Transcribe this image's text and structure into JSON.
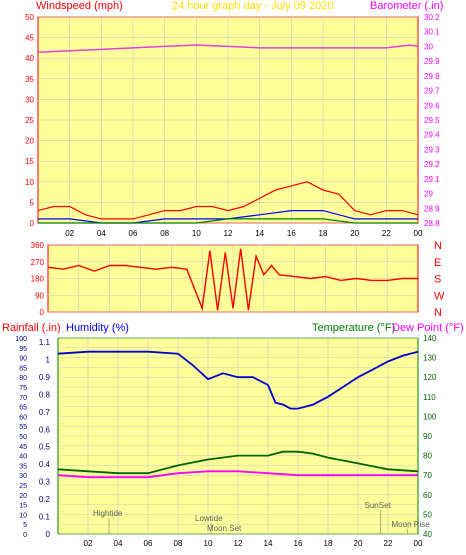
{
  "chart_data": [
    {
      "type": "line",
      "title": "24 hour graph day - July 09 2020",
      "x_ticks": [
        "02",
        "04",
        "06",
        "08",
        "10",
        "12",
        "14",
        "16",
        "18",
        "20",
        "22",
        "00"
      ],
      "left_axis": {
        "label": "Windspeed (mph)",
        "range": [
          0,
          50
        ],
        "ticks": [
          "0",
          "5",
          "10",
          "15",
          "20",
          "25",
          "30",
          "35",
          "40",
          "45",
          "50"
        ]
      },
      "right_axis": {
        "label": "Barometer (.in)",
        "range": [
          28.8,
          30.2
        ],
        "ticks": [
          "28.8",
          "28.9",
          "29",
          "29.1",
          "29.2",
          "29.3",
          "29.4",
          "29.5",
          "29.6",
          "29.7",
          "29.8",
          "29.9",
          "30",
          "30.1",
          "30.2"
        ]
      },
      "series": [
        {
          "name": "Barometer",
          "color": "#e040e0",
          "x": [
            0,
            2,
            4,
            6,
            8,
            10,
            12,
            14,
            16,
            18,
            20,
            22,
            23.5,
            24
          ],
          "y": [
            29.96,
            29.97,
            29.98,
            29.99,
            30.0,
            30.01,
            30.0,
            29.99,
            29.99,
            29.99,
            29.99,
            29.99,
            30.01,
            30.0
          ]
        },
        {
          "name": "Wind gust",
          "color": "#ff0000",
          "x": [
            0,
            1,
            2,
            3,
            4,
            5,
            6,
            7,
            8,
            9,
            10,
            11,
            12,
            13,
            14,
            15,
            16,
            17,
            18,
            19,
            20,
            21,
            22,
            23,
            24
          ],
          "y": [
            3,
            4,
            4,
            2,
            1,
            1,
            1,
            2,
            3,
            3,
            4,
            4,
            3,
            4,
            6,
            8,
            9,
            10,
            8,
            7,
            3,
            2,
            3,
            3,
            2
          ]
        },
        {
          "name": "Wind speed",
          "color": "#0000ff",
          "x": [
            0,
            2,
            4,
            6,
            8,
            10,
            12,
            14,
            16,
            18,
            20,
            22,
            24
          ],
          "y": [
            1,
            1,
            0,
            0,
            1,
            1,
            1,
            2,
            3,
            3,
            1,
            1,
            1
          ]
        },
        {
          "name": "Wind avg",
          "color": "#008000",
          "x": [
            0,
            2,
            4,
            6,
            8,
            10,
            12,
            14,
            16,
            18,
            20,
            22,
            24
          ],
          "y": [
            0,
            0,
            0,
            0,
            0,
            0,
            1,
            1,
            1,
            1,
            0,
            0,
            0
          ]
        }
      ]
    },
    {
      "type": "line",
      "left_axis": {
        "range": [
          0,
          360
        ],
        "ticks": [
          "0",
          "90",
          "180",
          "270",
          "360"
        ]
      },
      "right_labels": [
        "N",
        "W",
        "S",
        "E",
        "N"
      ],
      "series": [
        {
          "name": "Wind direction",
          "color": "#ff0000",
          "x": [
            0,
            1,
            2,
            3,
            4,
            5,
            6,
            7,
            8,
            9,
            10,
            10.5,
            11,
            11.5,
            12,
            12.5,
            13,
            13.5,
            14,
            14.5,
            15,
            16,
            17,
            18,
            19,
            20,
            21,
            22,
            23,
            24
          ],
          "y": [
            240,
            230,
            250,
            220,
            250,
            250,
            240,
            230,
            240,
            230,
            20,
            330,
            10,
            320,
            20,
            340,
            10,
            300,
            200,
            250,
            200,
            190,
            180,
            190,
            170,
            180,
            170,
            170,
            180,
            180
          ]
        }
      ]
    },
    {
      "type": "line",
      "x_ticks": [
        "02",
        "04",
        "06",
        "08",
        "10",
        "12",
        "14",
        "16",
        "18",
        "20",
        "22",
        "00"
      ],
      "axes": {
        "rainfall": {
          "label": "Rainfall (.in)",
          "ticks": [
            "0",
            "0.1",
            "0.2",
            "0.3",
            "0.4",
            "0.5",
            "0.6",
            "0.7",
            "0.8",
            "0.9",
            "1",
            "1.1"
          ]
        },
        "humidity": {
          "label": "Humidity (%)",
          "ticks": [
            "0",
            "5",
            "10",
            "15",
            "20",
            "25",
            "30",
            "35",
            "40",
            "45",
            "50",
            "55",
            "60",
            "65",
            "70",
            "75",
            "80",
            "85",
            "90",
            "95",
            "100"
          ],
          "range": [
            0,
            100
          ]
        },
        "temperature": {
          "label": "Temperature (°F)"
        },
        "dewpoint": {
          "label": "Dew Point (°F)",
          "ticks": [
            "40",
            "50",
            "60",
            "70",
            "80",
            "90",
            "100",
            "110",
            "120",
            "130",
            "140"
          ],
          "range": [
            40,
            140
          ]
        }
      },
      "series": [
        {
          "name": "Humidity",
          "color": "#0000cc",
          "x": [
            0,
            2,
            4,
            6,
            8,
            9,
            10,
            11,
            12,
            13,
            14,
            14.5,
            15,
            15.5,
            16,
            17,
            18,
            19,
            20,
            21,
            22,
            23,
            24
          ],
          "y": [
            92,
            93,
            93,
            93,
            92,
            86,
            79,
            82,
            80,
            80,
            76,
            67,
            66,
            64,
            64,
            66,
            70,
            75,
            80,
            84,
            88,
            91,
            93
          ]
        },
        {
          "name": "Temperature",
          "color": "#006400",
          "x": [
            0,
            2,
            4,
            6,
            8,
            10,
            12,
            14,
            15,
            16,
            17,
            18,
            20,
            22,
            24
          ],
          "y": [
            73,
            72,
            71,
            71,
            75,
            78,
            80,
            80,
            82,
            82,
            81,
            79,
            76,
            73,
            72
          ]
        },
        {
          "name": "Dew Point",
          "color": "#ff00ff",
          "x": [
            0,
            2,
            4,
            6,
            8,
            10,
            12,
            14,
            16,
            18,
            20,
            22,
            24
          ],
          "y": [
            70,
            69,
            69,
            69,
            71,
            72,
            72,
            71,
            70,
            70,
            70,
            70,
            70
          ]
        }
      ],
      "annotations": [
        "Hightide",
        "Lowtide",
        "Moon Set",
        "SunSet",
        "Moon Rise"
      ]
    }
  ],
  "colors": {
    "background": "#ffffff",
    "plot_bg": "#ffff99",
    "axis": "#ff0000",
    "grid": "#c8c8c8"
  }
}
